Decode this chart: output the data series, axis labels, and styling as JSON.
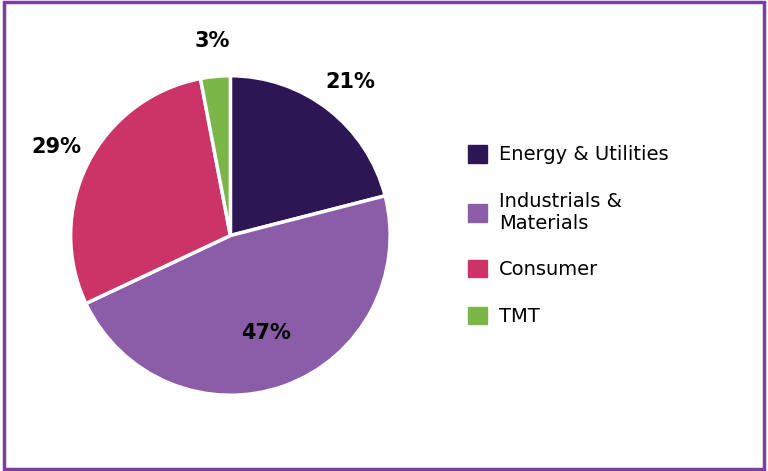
{
  "labels": [
    "Energy & Utilities",
    "Industrials & Materials",
    "Consumer",
    "TMT"
  ],
  "values": [
    21,
    47,
    29,
    3
  ],
  "colors": [
    "#2d1654",
    "#8b5ca8",
    "#cc3366",
    "#7ab648"
  ],
  "autopct_labels": [
    "21%",
    "47%",
    "29%",
    "3%"
  ],
  "legend_labels": [
    "Energy & Utilities",
    "Industrials &\nMaterials",
    "Consumer",
    "TMT"
  ],
  "legend_colors": [
    "#2d1654",
    "#8b5ca8",
    "#cc3366",
    "#7ab648"
  ],
  "background_color": "#ffffff",
  "border_color": "#7b3fa0",
  "startangle": 90,
  "pct_fontsize": 15,
  "legend_fontsize": 14
}
